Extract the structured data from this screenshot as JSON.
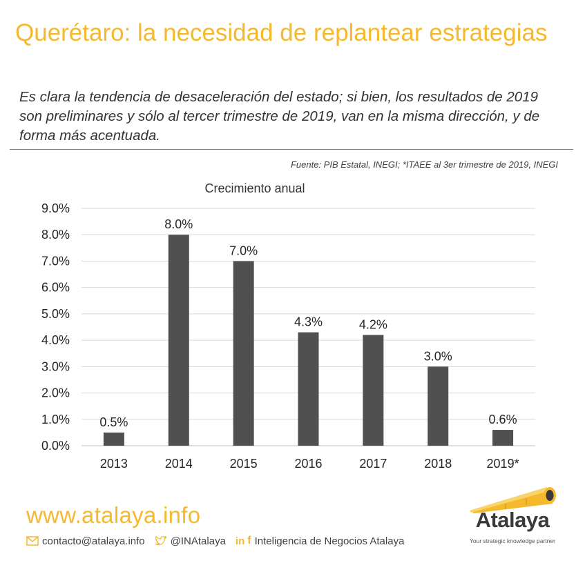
{
  "header": {
    "title": "Querétaro: la necesidad de replantear estrategias",
    "subtitle": "Es clara la tendencia de desaceleración del estado; si bien, los resultados de 2019 son preliminares y sólo al tercer trimestre de 2019, van en la misma dirección, y de forma más acentuada.",
    "source": "Fuente: PIB Estatal, INEGI; *ITAEE al 3er trimestre de 2019, INEGI"
  },
  "chart_data": {
    "type": "bar",
    "title": "Crecimiento anual",
    "xlabel": "",
    "ylabel": "",
    "categories": [
      "2013",
      "2014",
      "2015",
      "2016",
      "2017",
      "2018",
      "2019*"
    ],
    "values": [
      0.5,
      8.0,
      7.0,
      4.3,
      4.2,
      3.0,
      0.6
    ],
    "data_labels": [
      "0.5%",
      "8.0%",
      "7.0%",
      "4.3%",
      "4.2%",
      "3.0%",
      "0.6%"
    ],
    "ylim": [
      0,
      9
    ],
    "yticks": [
      "0.0%",
      "1.0%",
      "2.0%",
      "3.0%",
      "4.0%",
      "5.0%",
      "6.0%",
      "7.0%",
      "8.0%",
      "9.0%"
    ],
    "grid": true,
    "bar_color": "#505050"
  },
  "footer": {
    "website": "www.atalaya.info",
    "email": "contacto@atalaya.info",
    "twitter": "@INAtalaya",
    "linkedin_glyph": "in",
    "facebook_glyph": "f",
    "company": "Inteligencia de Negocios Atalaya",
    "logo_word": "Atalaya",
    "logo_tagline": "Your strategic knowledge partner",
    "accent": "#f5b92e"
  }
}
